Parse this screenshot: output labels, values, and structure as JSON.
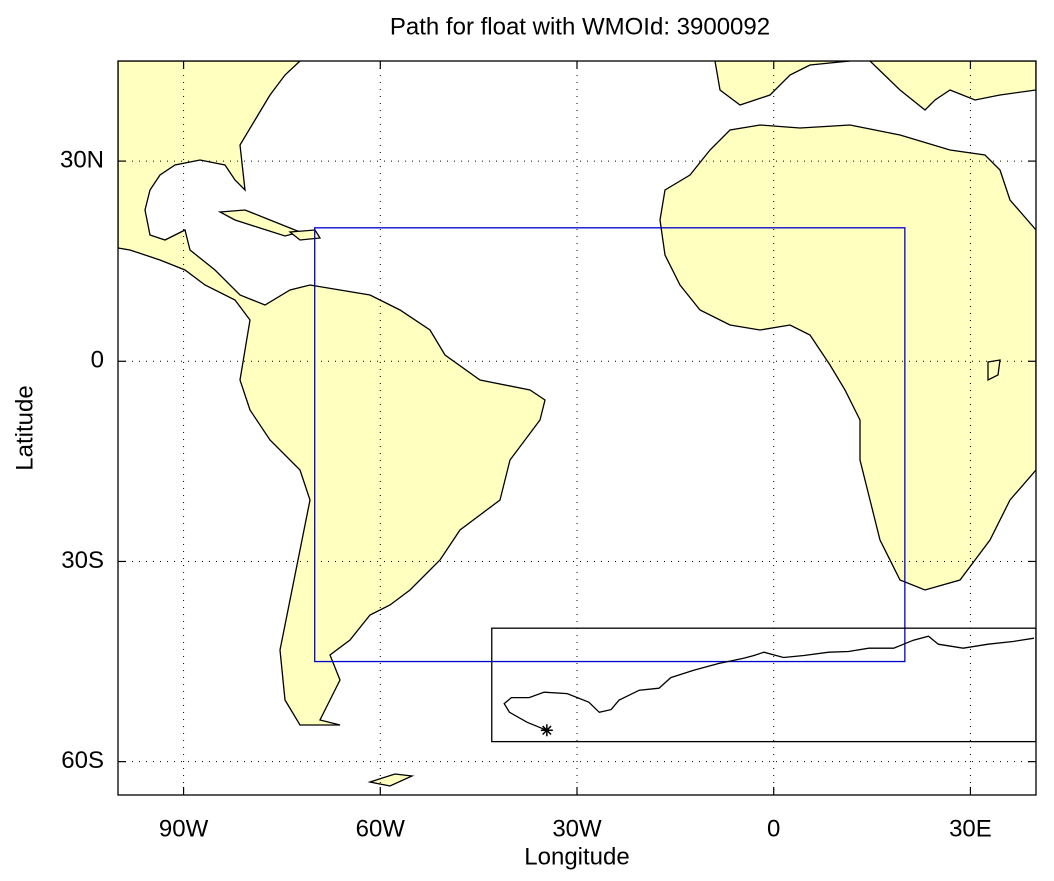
{
  "chart_data": {
    "type": "line",
    "title": "Path for float with WMOId: 3900092",
    "x_label": "Longitude",
    "y_label": "Latitude",
    "xlim": [
      -100,
      40
    ],
    "ylim": [
      -65,
      45
    ],
    "xticks": [
      {
        "value": -90,
        "label": "90W"
      },
      {
        "value": -60,
        "label": "60W"
      },
      {
        "value": -30,
        "label": "30W"
      },
      0,
      {
        "value": 30,
        "label": "30E"
      }
    ],
    "yticks": [
      {
        "value": 30,
        "label": "30N"
      },
      0,
      {
        "value": -30,
        "label": "30S"
      },
      {
        "value": -60,
        "label": "60S"
      }
    ],
    "grid": true,
    "color": "#000000",
    "x": [
      -34.6,
      -37.6,
      -40.3,
      -41.1,
      -40.0,
      -37.3,
      -35.0,
      -31.5,
      -28.2,
      -26.6,
      -24.8,
      -23.6,
      -20.5,
      -17.5,
      -15.7,
      -12.2,
      -8.4,
      -4.6,
      -3.0,
      -1.5,
      1.5,
      4.6,
      8.4,
      11.4,
      14.5,
      18.3,
      21.3,
      23.6,
      25.1,
      28.9,
      32.7,
      36.5,
      39.7
    ],
    "values": [
      -55.3,
      -54.1,
      -52.6,
      -51.3,
      -50.4,
      -50.4,
      -49.6,
      -49.8,
      -51.1,
      -52.6,
      -52.2,
      -50.8,
      -49.3,
      -49.0,
      -47.4,
      -46.3,
      -45.3,
      -44.5,
      -44.1,
      -43.6,
      -44.4,
      -44.1,
      -43.6,
      -43.5,
      -43.0,
      -43.0,
      -41.8,
      -41.2,
      -42.4,
      -43.0,
      -42.4,
      -42.0,
      -41.5
    ],
    "boxes": [
      {
        "xlim": [
          -70,
          20
        ],
        "ylim": [
          -45,
          20
        ],
        "color": "#0000cc"
      },
      {
        "xlim": [
          -43,
          40
        ],
        "ylim": [
          -57,
          -40
        ],
        "color": "#000000"
      }
    ]
  }
}
